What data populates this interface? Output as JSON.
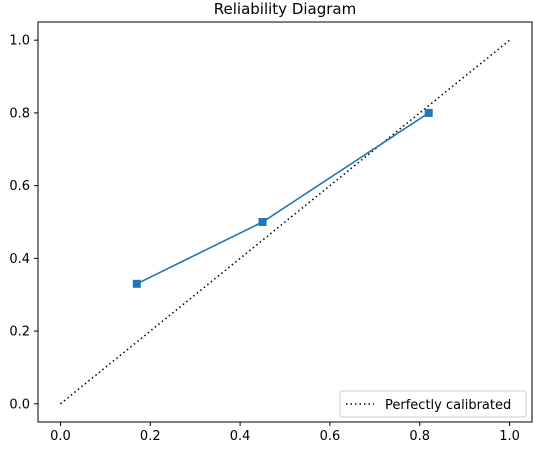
{
  "chart_data": {
    "type": "line",
    "title": "Reliability Diagram",
    "xlabel": "",
    "ylabel": "",
    "xlim": [
      -0.05,
      1.05
    ],
    "ylim": [
      -0.05,
      1.05
    ],
    "xticks": [
      "0.0",
      "0.2",
      "0.4",
      "0.6",
      "0.8",
      "1.0"
    ],
    "yticks": [
      "0.0",
      "0.2",
      "0.4",
      "0.6",
      "0.8",
      "1.0"
    ],
    "grid": false,
    "legend_position": "lower-right",
    "series": [
      {
        "name": "Perfectly calibrated",
        "style": "dotted",
        "color": "#000000",
        "marker": "none",
        "x": [
          0.0,
          1.0
        ],
        "y": [
          0.0,
          1.0
        ]
      },
      {
        "style": "solid",
        "color": "#1f77b4",
        "marker": "square",
        "x": [
          0.17,
          0.45,
          0.82
        ],
        "y": [
          0.33,
          0.5,
          0.8
        ]
      }
    ]
  }
}
